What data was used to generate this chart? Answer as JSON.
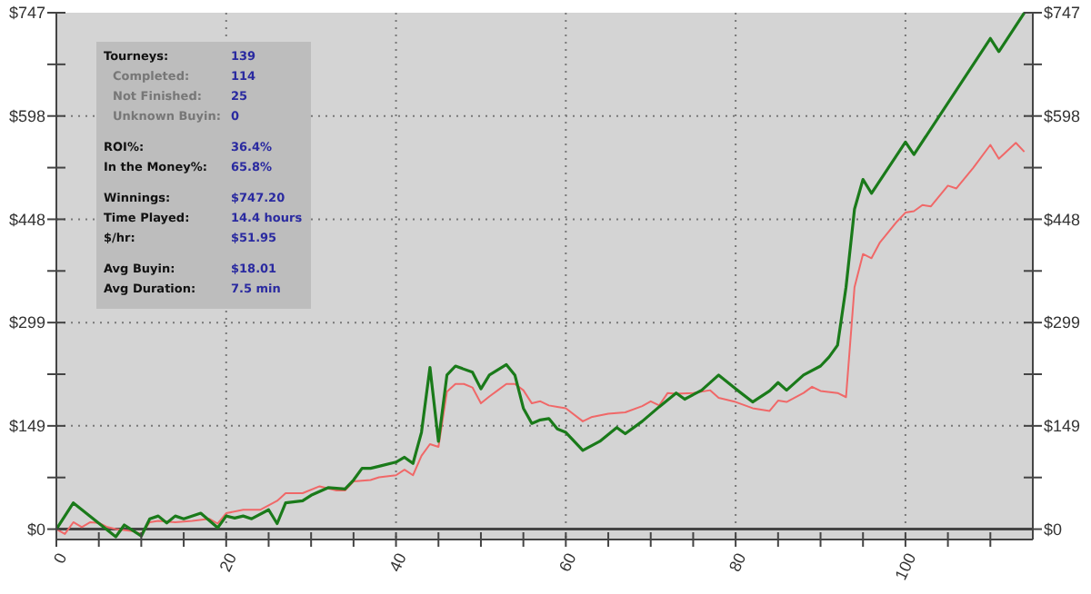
{
  "chart_data": {
    "type": "line",
    "x": [
      0,
      2,
      7,
      8,
      10,
      11,
      12,
      13,
      14,
      15,
      17,
      19,
      20,
      21,
      22,
      23,
      25,
      26,
      27,
      29,
      30,
      32,
      34,
      35,
      36,
      37,
      38,
      40,
      41,
      42,
      43,
      44,
      45,
      46,
      47,
      49,
      50,
      51,
      53,
      54,
      55,
      56,
      57,
      58,
      59,
      60,
      62,
      64,
      66,
      67,
      69,
      71,
      73,
      74,
      76,
      78,
      80,
      82,
      84,
      85,
      86,
      88,
      90,
      91,
      92,
      93,
      94,
      95,
      96,
      100,
      101,
      110,
      111,
      114
    ],
    "xlim": [
      0,
      115
    ],
    "xticks": [
      0,
      {
        "value": 5,
        "label": null
      },
      {
        "value": 10,
        "label": null
      },
      {
        "value": 15,
        "label": null
      },
      20,
      {
        "value": 25,
        "label": null
      },
      {
        "value": 30,
        "label": null
      },
      {
        "value": 35,
        "label": null
      },
      40,
      {
        "value": 45,
        "label": null
      },
      {
        "value": 50,
        "label": null
      },
      {
        "value": 55,
        "label": null
      },
      60,
      {
        "value": 65,
        "label": null
      },
      {
        "value": 70,
        "label": null
      },
      {
        "value": 75,
        "label": null
      },
      80,
      {
        "value": 85,
        "label": null
      },
      {
        "value": 90,
        "label": null
      },
      {
        "value": 95,
        "label": null
      },
      100,
      {
        "value": 105,
        "label": null
      },
      {
        "value": 110,
        "label": null
      }
    ],
    "ylim": [
      -15,
      747.2
    ],
    "yticks": [
      {
        "value": 0,
        "label": "$0"
      },
      {
        "value": 74.72,
        "label": null
      },
      {
        "value": 149.44,
        "label": "$149"
      },
      {
        "value": 224.16,
        "label": null
      },
      {
        "value": 298.88,
        "label": "$299"
      },
      {
        "value": 373.6,
        "label": null
      },
      {
        "value": 448.32,
        "label": "$448"
      },
      {
        "value": 523.04,
        "label": null
      },
      {
        "value": 597.76,
        "label": "$598"
      },
      {
        "value": 672.48,
        "label": null
      },
      {
        "value": 747.2,
        "label": "$747"
      }
    ],
    "y2lim": [
      -15,
      747.2
    ],
    "y2ticks": [
      {
        "value": 0,
        "label": "$0"
      },
      {
        "value": 74.72,
        "label": null
      },
      {
        "value": 149.44,
        "label": "$149"
      },
      {
        "value": 224.16,
        "label": null
      },
      {
        "value": 298.88,
        "label": "$299"
      },
      {
        "value": 373.6,
        "label": null
      },
      {
        "value": 448.32,
        "label": "$448"
      },
      {
        "value": 523.04,
        "label": null
      },
      {
        "value": 597.76,
        "label": "$598"
      },
      {
        "value": 672.48,
        "label": null
      },
      {
        "value": 747.2,
        "label": "$747"
      }
    ],
    "grid": true,
    "series": [
      {
        "color": "#f06868",
        "x": [
          0,
          1,
          2,
          3,
          4,
          5,
          6,
          7,
          9,
          10,
          11,
          12,
          14,
          16,
          18,
          19,
          20,
          22,
          24,
          26,
          27,
          29,
          31,
          33,
          34,
          35,
          37,
          38,
          40,
          41,
          42,
          43,
          44,
          45,
          46,
          47,
          48,
          49,
          50,
          51,
          52,
          53,
          54,
          55,
          56,
          57,
          58,
          59,
          60,
          62,
          63,
          65,
          67,
          69,
          70,
          71,
          72,
          73,
          75,
          77,
          78,
          80,
          82,
          84,
          85,
          86,
          88,
          89,
          90,
          92,
          93,
          94,
          95,
          96,
          97,
          99,
          100,
          101,
          102,
          103,
          105,
          106,
          108,
          110,
          111,
          113,
          114
        ],
        "values": [
          0,
          -7,
          10,
          3,
          10,
          9,
          3,
          0,
          -3,
          -7,
          10,
          12,
          10,
          12,
          15,
          8,
          23,
          28,
          28,
          41,
          52,
          52,
          62,
          56,
          56,
          69,
          71,
          75,
          78,
          86,
          78,
          106,
          123,
          119,
          199,
          210,
          210,
          205,
          182,
          192,
          201,
          210,
          210,
          201,
          182,
          185,
          179,
          177,
          175,
          156,
          162,
          167,
          169,
          178,
          185,
          179,
          197,
          196,
          197,
          201,
          190,
          184,
          175,
          171,
          186,
          184,
          197,
          206,
          200,
          197,
          191,
          350,
          398,
          392,
          415,
          445,
          458,
          460,
          469,
          467,
          497,
          493,
          523,
          556,
          536,
          559,
          546
        ]
      },
      {
        "color": "#1a7a1a",
        "values": [
          0,
          38,
          -11,
          6,
          -10,
          15,
          19,
          9,
          19,
          15,
          23,
          2,
          19,
          16,
          19,
          15,
          28,
          8,
          38,
          41,
          49,
          60,
          58,
          71,
          88,
          88,
          91,
          97,
          104,
          95,
          140,
          234,
          127,
          223,
          236,
          227,
          203,
          223,
          238,
          223,
          175,
          153,
          158,
          160,
          145,
          140,
          114,
          127,
          147,
          138,
          156,
          177,
          197,
          188,
          201,
          223,
          203,
          184,
          200,
          212,
          201,
          223,
          236,
          249,
          266,
          350,
          463,
          506,
          486,
          560,
          542,
          710,
          691,
          747
        ]
      }
    ],
    "annotations": [
      "Tourneys:",
      "139",
      "Completed:",
      "114",
      "Not Finished:",
      "25",
      "Unknown Buyin:",
      "0",
      "ROI%:",
      "36.4%",
      "In the Money%:",
      "65.8%",
      "Winnings:",
      "$747.20",
      "Time Played:",
      "14.4 hours",
      "$/hr:",
      "$51.95",
      "Avg Buyin:",
      "$18.01",
      "Avg Duration:",
      "7.5 min"
    ]
  }
}
